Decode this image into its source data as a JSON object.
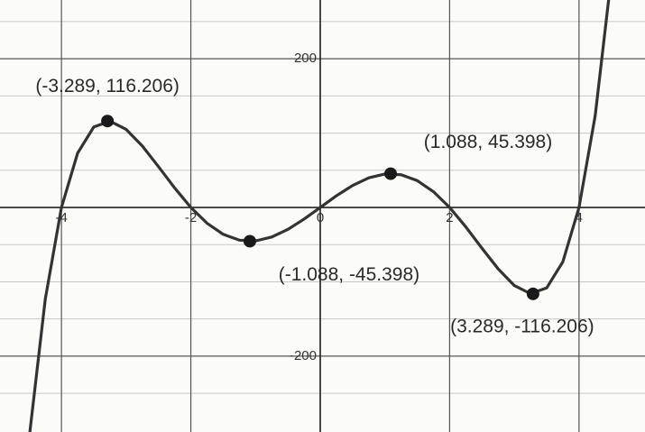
{
  "chart_data": {
    "type": "line",
    "x": [
      -4.5,
      -4.25,
      -4,
      -3.75,
      -3.5,
      -3.25,
      -3,
      -2.75,
      -2.5,
      -2.25,
      -2,
      -1.75,
      -1.5,
      -1.25,
      -1,
      -0.75,
      -0.5,
      -0.25,
      0,
      0.25,
      0.5,
      0.75,
      1,
      1.25,
      1.5,
      1.75,
      2,
      2.25,
      2.5,
      2.75,
      3,
      3.25,
      3.5,
      3.75,
      4,
      4.25,
      4.5
    ],
    "series": [
      {
        "color": "#333333",
        "values": [
          -310.78,
          -123.27,
          0,
          73.11,
          108.28,
          115.97,
          105,
          82.66,
          54.84,
          26.15,
          0,
          -21.23,
          -36.09,
          -43.99,
          -45,
          -39.8,
          -29.53,
          -15.69,
          0,
          15.69,
          29.53,
          39.8,
          45,
          43.99,
          36.09,
          21.23,
          0,
          -26.15,
          -54.84,
          -82.66,
          -105,
          -115.97,
          -108.28,
          -73.11,
          0,
          123.27,
          310.78
        ]
      }
    ],
    "points": [
      {
        "x": -3.289,
        "y": 116.206,
        "label": "(-3.289, 116.206)"
      },
      {
        "x": 1.088,
        "y": 45.398,
        "label": "(1.088, 45.398)"
      },
      {
        "x": -1.088,
        "y": -45.398,
        "label": "(-1.088, -45.398)"
      },
      {
        "x": 3.289,
        "y": -116.206,
        "label": "(3.289, -116.206)"
      }
    ],
    "point_color": "#1a1a1a",
    "xlim": [
      -4.95,
      5.02
    ],
    "ylim": [
      -302,
      279
    ],
    "xticks": [
      -4,
      -2,
      0,
      2,
      4
    ],
    "yticks": [
      -200,
      200
    ],
    "yminor": [
      -250,
      -150,
      -100,
      -50,
      50,
      100,
      150,
      250
    ],
    "grid": true
  }
}
